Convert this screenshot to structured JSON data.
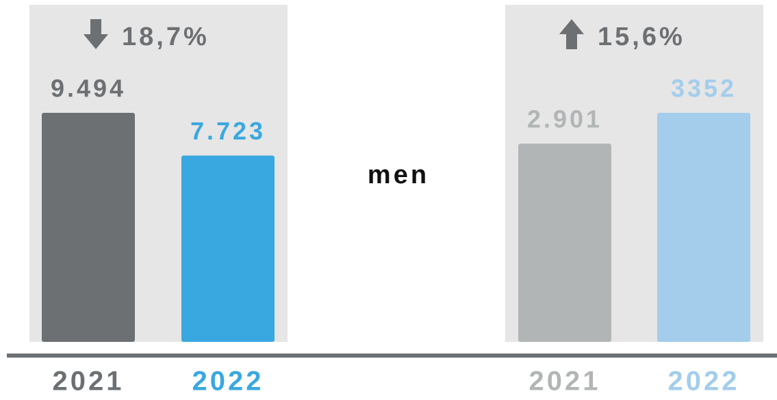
{
  "label": "men",
  "chart_data": [
    {
      "type": "bar",
      "change": "18,7%",
      "direction": "down",
      "categories": [
        "2021",
        "2022"
      ],
      "values": [
        9494,
        7723
      ],
      "value_labels": [
        "9.494",
        "7.723"
      ],
      "colors": [
        "#6d7073",
        "#3aa8e0"
      ]
    },
    {
      "type": "bar",
      "change": "15,6%",
      "direction": "up",
      "categories": [
        "2021",
        "2022"
      ],
      "values": [
        2901,
        3352
      ],
      "value_labels": [
        "2.901",
        "3352"
      ],
      "colors": [
        "#b2b5b6",
        "#a3cdeb"
      ]
    }
  ]
}
